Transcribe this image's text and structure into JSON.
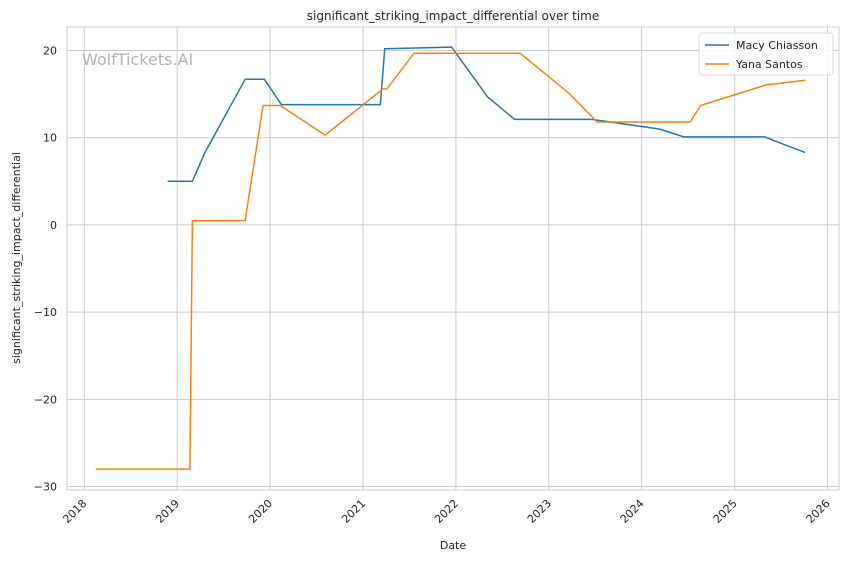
{
  "chart_data": {
    "type": "line",
    "title": "significant_striking_impact_differential over time",
    "xlabel": "Date",
    "ylabel": "significant_striking_impact_differential",
    "watermark": "WolfTickets.AI",
    "x_ticks": [
      "2018",
      "2019",
      "2020",
      "2021",
      "2022",
      "2023",
      "2024",
      "2025",
      "2026"
    ],
    "y_ticks": [
      -30,
      -20,
      -10,
      0,
      10,
      20
    ],
    "xlim": [
      "2017-10-25",
      "2026-02-15"
    ],
    "ylim": [
      -30.4,
      22.7
    ],
    "grid": true,
    "legend_position": "top-right",
    "series": [
      {
        "name": "Macy Chiasson",
        "color": "#1f77b4",
        "points": [
          [
            "2018-11-25",
            5.0
          ],
          [
            "2019-03-02",
            5.0
          ],
          [
            "2019-04-20",
            8.3
          ],
          [
            "2019-09-25",
            16.7
          ],
          [
            "2019-12-10",
            16.7
          ],
          [
            "2020-02-15",
            13.8
          ],
          [
            "2021-03-10",
            13.8
          ],
          [
            "2021-03-27",
            20.2
          ],
          [
            "2021-12-15",
            20.4
          ],
          [
            "2022-05-05",
            14.7
          ],
          [
            "2022-08-20",
            12.1
          ],
          [
            "2023-06-20",
            12.1
          ],
          [
            "2024-03-10",
            11.0
          ],
          [
            "2024-06-15",
            10.1
          ],
          [
            "2025-05-01",
            10.1
          ],
          [
            "2025-06-10",
            9.6
          ],
          [
            "2025-10-05",
            8.3
          ]
        ]
      },
      {
        "name": "Yana Santos",
        "color": "#ff7f0e",
        "points": [
          [
            "2018-02-15",
            -28.0
          ],
          [
            "2019-02-20",
            -28.0
          ],
          [
            "2019-03-02",
            0.5
          ],
          [
            "2019-09-25",
            0.5
          ],
          [
            "2019-12-05",
            13.7
          ],
          [
            "2020-02-10",
            13.7
          ],
          [
            "2020-08-05",
            10.3
          ],
          [
            "2021-03-20",
            15.6
          ],
          [
            "2021-04-05",
            15.6
          ],
          [
            "2021-07-20",
            19.7
          ],
          [
            "2022-09-10",
            19.7
          ],
          [
            "2023-03-25",
            15.0
          ],
          [
            "2023-07-10",
            11.8
          ],
          [
            "2024-07-10",
            11.8
          ],
          [
            "2024-08-20",
            13.7
          ],
          [
            "2025-05-10",
            16.1
          ],
          [
            "2025-06-15",
            16.2
          ],
          [
            "2025-10-05",
            16.6
          ]
        ]
      }
    ]
  }
}
